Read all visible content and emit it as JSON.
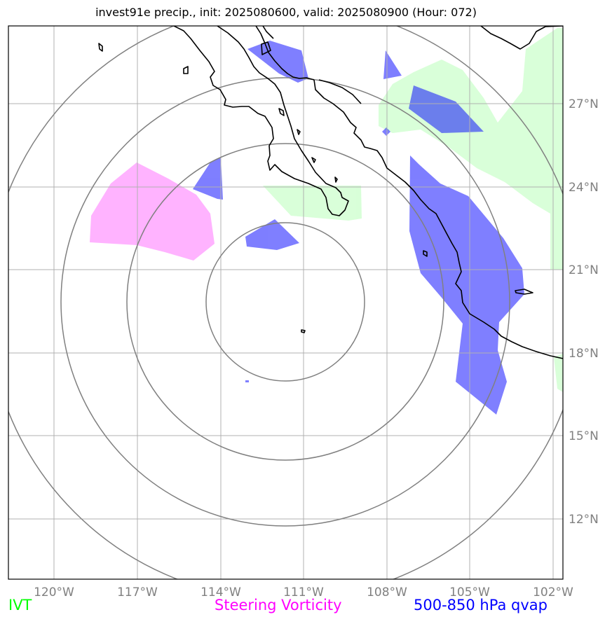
{
  "title": "invest91e precip., init: 2025080600, valid: 2025080900 (Hour: 072)",
  "map": {
    "longitude_labels": [
      "120°W",
      "117°W",
      "114°W",
      "111°W",
      "108°W",
      "105°W",
      "102°W"
    ],
    "latitude_labels": [
      "27°N",
      "24°N",
      "21°N",
      "18°N",
      "15°N",
      "12°N"
    ],
    "range_rings": "concentric distance rings around storm center near 111°W, 19°N",
    "colors": {
      "ivt": "#ccffcc",
      "steering_vorticity": "#ff99ff",
      "qvap": "#0000ff",
      "gridlines": "#b0b0b0",
      "rings": "#808080",
      "coastline": "#000000"
    }
  },
  "legend": {
    "ivt": {
      "label": "IVT",
      "color": "#00ff00"
    },
    "steering_vorticity": {
      "label": "Steering Vorticity",
      "color": "#ff00ff"
    },
    "qvap": {
      "label": "500-850 hPa qvap",
      "color": "#0000ff"
    }
  }
}
